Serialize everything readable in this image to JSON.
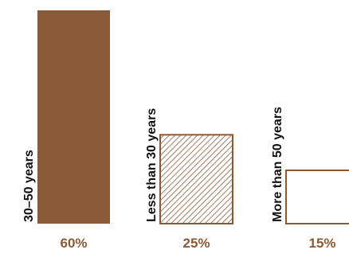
{
  "chart_data": {
    "type": "bar",
    "categories": [
      "30–50 years",
      "Less than 30 years",
      "More than 50 years"
    ],
    "values": [
      60,
      25,
      15
    ],
    "value_labels": [
      "60%",
      "25%",
      "15%"
    ],
    "fill_styles": [
      "solid",
      "hatched",
      "outline"
    ],
    "ylim": [
      0,
      60
    ],
    "grid": false,
    "colors": {
      "bar": "#8a5a37",
      "label": "#8a5a37",
      "text": "#111111"
    }
  }
}
